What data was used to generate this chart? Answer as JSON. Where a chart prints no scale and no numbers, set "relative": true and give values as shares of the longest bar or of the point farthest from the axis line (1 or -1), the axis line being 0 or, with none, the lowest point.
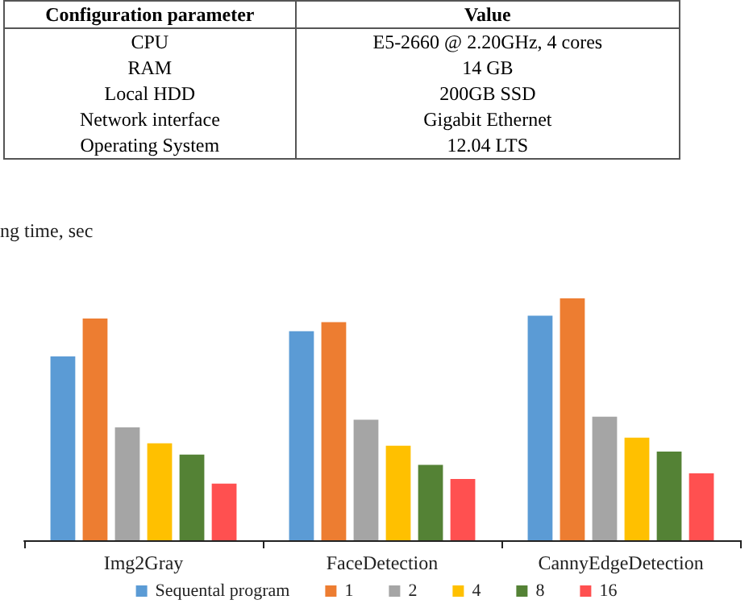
{
  "chart_data": [
    {
      "type": "other",
      "annotations": [
        "Configuration parameter",
        "Value",
        "CPU",
        "E5-2660 @ 2.20GHz, 4 cores",
        "RAM",
        "14 GB",
        "Local HDD",
        "200GB SSD",
        "Network interface",
        "Gigabit Ethernet",
        "Operating System",
        "12.04 LTS"
      ]
    },
    {
      "type": "bar",
      "ylabel": "ng time, sec",
      "relative": true,
      "categories": [
        "Img2Gray",
        "FaceDetection",
        "CannyEdgeDetection"
      ],
      "legend": "bottom",
      "series": [
        {
          "name": "Sequental program",
          "color": "#5b9bd5",
          "values": [
            0.76,
            0.864,
            0.928
          ]
        },
        {
          "name": "1",
          "color": "#ed7d31",
          "values": [
            0.917,
            0.902,
            1
          ]
        },
        {
          "name": "2",
          "color": "#a5a5a5",
          "values": [
            0.467,
            0.498,
            0.511
          ]
        },
        {
          "name": "4",
          "color": "#ffc000",
          "values": [
            0.401,
            0.391,
            0.424
          ]
        },
        {
          "name": "8",
          "color": "#548235",
          "values": [
            0.354,
            0.312,
            0.367
          ]
        },
        {
          "name": "16",
          "color": "#ff5050",
          "values": [
            0.234,
            0.253,
            0.277
          ]
        }
      ]
    }
  ]
}
